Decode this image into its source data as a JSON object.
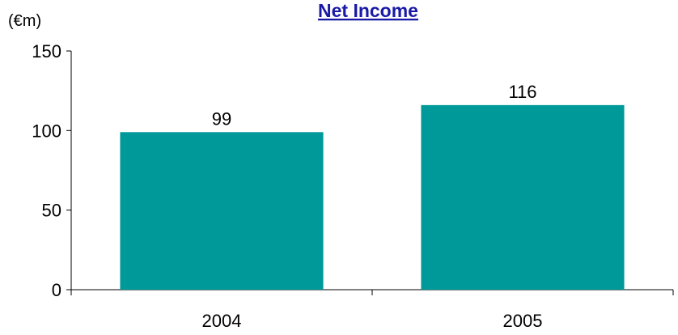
{
  "chart_data": {
    "type": "bar",
    "title": "Net Income",
    "unit_label": "(€m)",
    "categories": [
      "2004",
      "2005"
    ],
    "values": [
      99,
      116
    ],
    "data_labels": [
      "99",
      "116"
    ],
    "ylim": [
      0,
      150
    ],
    "yticks": [
      0,
      50,
      100,
      150
    ],
    "ytick_labels": [
      "0",
      "50",
      "100",
      "150"
    ],
    "xlabel": "",
    "ylabel": "",
    "grid": false,
    "bar_color": "#009999",
    "title_color": "#1a1aa6"
  }
}
